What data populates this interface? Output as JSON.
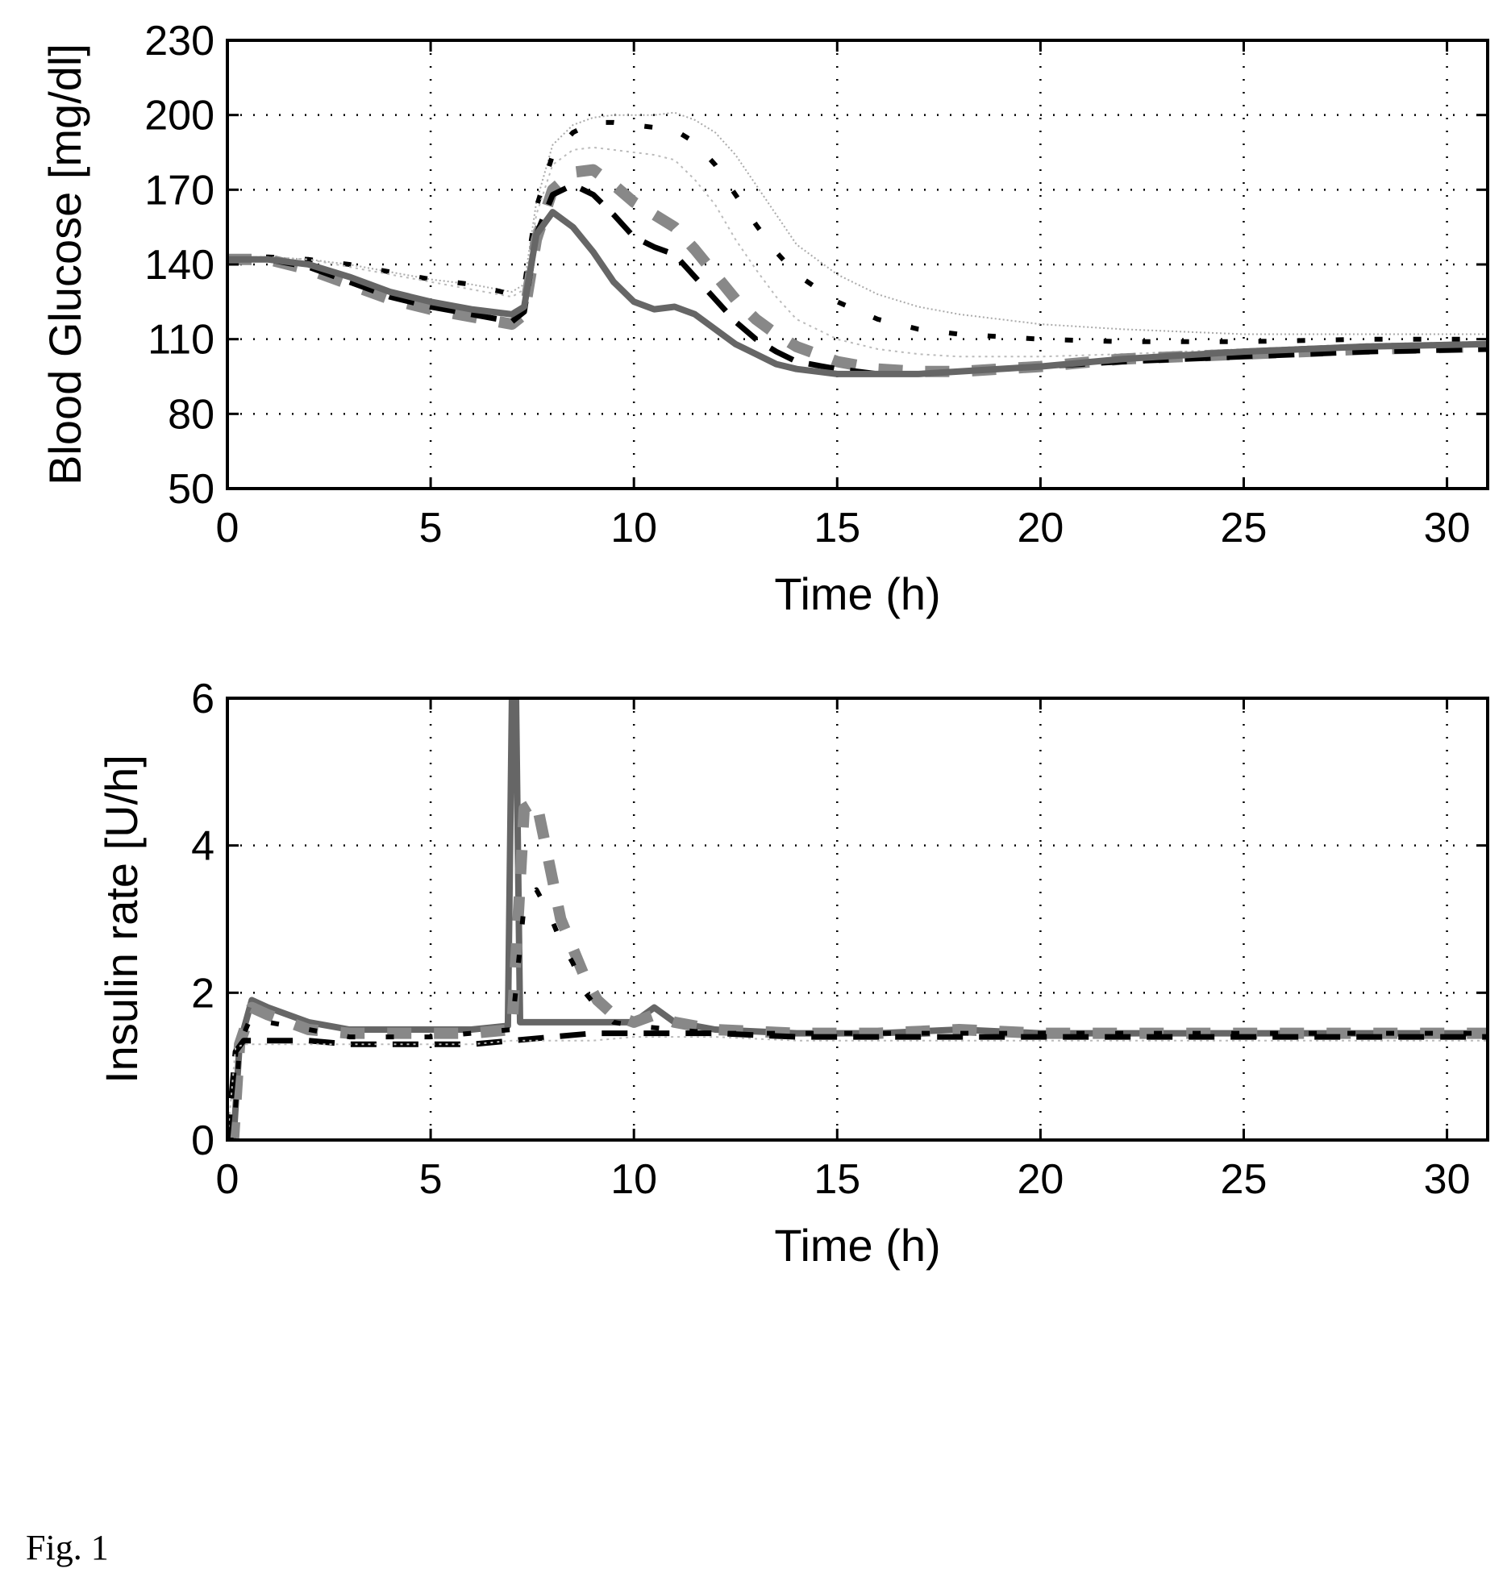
{
  "figure_label": "Fig. 1",
  "chart_data": [
    {
      "type": "line",
      "title": "",
      "xlabel": "Time (h)",
      "ylabel": "Blood Glucose [mg/dl]",
      "xlim": [
        0,
        31
      ],
      "ylim": [
        50,
        230
      ],
      "xticks": [
        0,
        5,
        10,
        15,
        20,
        25,
        30
      ],
      "yticks": [
        50,
        80,
        110,
        140,
        170,
        200,
        230
      ],
      "grid": true,
      "legend": "none",
      "series": [
        {
          "color": "#aaaaaa",
          "style": "thin-dotted",
          "x": [
            0,
            1,
            2,
            3,
            4,
            5,
            6,
            7,
            7.3,
            7.6,
            8,
            8.5,
            9,
            9.5,
            10,
            10.5,
            11,
            11.5,
            12,
            12.5,
            13,
            13.5,
            14,
            15,
            16,
            17,
            18,
            20,
            22,
            25,
            28,
            31
          ],
          "y": [
            143,
            143,
            142,
            140,
            137,
            134,
            132,
            129,
            132,
            165,
            188,
            196,
            199,
            200,
            200,
            200,
            201,
            198,
            193,
            184,
            172,
            160,
            148,
            136,
            128,
            123,
            120,
            116,
            114,
            112,
            112,
            112
          ]
        },
        {
          "color": "#000000",
          "style": "sparse-dash",
          "x": [
            0,
            1,
            2,
            3,
            4,
            5,
            6,
            7,
            7.3,
            7.6,
            8,
            8.5,
            9,
            9.5,
            10,
            10.5,
            11,
            11.5,
            12,
            12.5,
            13,
            13.5,
            14,
            15,
            16,
            17,
            18,
            20,
            22,
            25,
            28,
            31
          ],
          "y": [
            143,
            143,
            142,
            140,
            137,
            134,
            132,
            128,
            131,
            163,
            184,
            193,
            197,
            197,
            196,
            195,
            194,
            189,
            180,
            168,
            156,
            145,
            136,
            125,
            118,
            114,
            112,
            110,
            109,
            109,
            110,
            110
          ]
        },
        {
          "color": "#bbbbbb",
          "style": "fine-dotted",
          "x": [
            0,
            1,
            2,
            3,
            4,
            5,
            6,
            7,
            7.3,
            7.6,
            8,
            8.5,
            9,
            9.5,
            10,
            10.5,
            11,
            11.5,
            12,
            12.5,
            13,
            13.5,
            14,
            15,
            16,
            17,
            18,
            20,
            22,
            25,
            28,
            31
          ],
          "y": [
            143,
            143,
            142,
            139,
            136,
            133,
            130,
            127,
            130,
            160,
            180,
            186,
            187,
            186,
            185,
            184,
            182,
            174,
            164,
            150,
            138,
            127,
            118,
            110,
            106,
            104,
            103,
            103,
            104,
            106,
            108,
            109
          ]
        },
        {
          "color": "#888888",
          "style": "thick-dash",
          "x": [
            0,
            1,
            2,
            3,
            4,
            5,
            6,
            7,
            7.3,
            7.6,
            8,
            8.5,
            9,
            9.5,
            10,
            10.5,
            11,
            11.5,
            12,
            12.5,
            13,
            13.5,
            14,
            15,
            16,
            17,
            18,
            20,
            22,
            25,
            28,
            31
          ],
          "y": [
            142,
            142,
            138,
            132,
            126,
            122,
            119,
            116,
            120,
            150,
            170,
            177,
            178,
            172,
            165,
            160,
            155,
            146,
            136,
            126,
            118,
            112,
            107,
            101,
            98,
            97,
            97,
            99,
            102,
            104,
            106,
            107
          ]
        },
        {
          "color": "#000000",
          "style": "long-dash",
          "x": [
            0,
            1,
            2,
            3,
            4,
            5,
            6,
            7,
            7.3,
            7.6,
            8,
            8.5,
            9,
            9.5,
            10,
            10.5,
            11,
            11.5,
            12,
            12.5,
            13,
            13.5,
            14,
            15,
            16,
            17,
            18,
            20,
            22,
            25,
            28,
            31
          ],
          "y": [
            142,
            142,
            139,
            133,
            127,
            123,
            120,
            117,
            121,
            152,
            168,
            172,
            168,
            160,
            151,
            147,
            144,
            135,
            126,
            117,
            110,
            105,
            101,
            98,
            96,
            96,
            97,
            99,
            101,
            103,
            105,
            106
          ]
        },
        {
          "color": "#666666",
          "style": "solid",
          "x": [
            0,
            1,
            2,
            3,
            4,
            5,
            6,
            7,
            7.3,
            7.6,
            8,
            8.5,
            9,
            9.5,
            10,
            10.5,
            11,
            11.5,
            12,
            12.5,
            13,
            13.5,
            14,
            15,
            16,
            17,
            18,
            20,
            22,
            25,
            28,
            31
          ],
          "y": [
            142,
            142,
            140,
            135,
            129,
            125,
            122,
            120,
            123,
            152,
            161,
            155,
            145,
            133,
            125,
            122,
            123,
            120,
            114,
            108,
            104,
            100,
            98,
            96,
            96,
            96,
            97,
            99,
            102,
            105,
            107,
            108
          ]
        }
      ]
    },
    {
      "type": "line",
      "title": "",
      "xlabel": "Time (h)",
      "ylabel": "Insulin rate [U/h]",
      "xlim": [
        0,
        31
      ],
      "ylim": [
        0,
        6
      ],
      "xticks": [
        0,
        5,
        10,
        15,
        20,
        25,
        30
      ],
      "yticks": [
        0,
        2,
        4,
        6
      ],
      "grid": true,
      "legend": "none",
      "series": [
        {
          "color": "#666666",
          "style": "solid",
          "x": [
            0,
            0.15,
            0.3,
            0.6,
            1,
            2,
            3,
            4,
            5,
            6,
            6.9,
            7,
            7.1,
            7.2,
            7.4,
            8,
            9,
            10,
            10.5,
            11,
            12,
            14,
            16,
            18,
            20,
            22,
            24,
            26,
            28,
            30,
            31
          ],
          "y": [
            0,
            0,
            1.3,
            1.9,
            1.8,
            1.6,
            1.5,
            1.5,
            1.5,
            1.5,
            1.55,
            6,
            6,
            1.6,
            1.6,
            1.6,
            1.6,
            1.6,
            1.8,
            1.6,
            1.5,
            1.45,
            1.45,
            1.5,
            1.45,
            1.45,
            1.45,
            1.45,
            1.45,
            1.45,
            1.45
          ]
        },
        {
          "color": "#888888",
          "style": "thick-dash",
          "x": [
            0,
            0.15,
            0.3,
            0.6,
            1,
            2,
            3,
            4,
            5,
            6,
            7,
            7.3,
            7.6,
            7.9,
            8.2,
            8.5,
            8.8,
            9.1,
            9.5,
            10,
            10.5,
            11,
            12,
            14,
            16,
            18,
            20,
            22,
            24,
            26,
            28,
            30,
            31
          ],
          "y": [
            0,
            0,
            1.3,
            1.8,
            1.7,
            1.5,
            1.45,
            1.45,
            1.45,
            1.45,
            1.5,
            4.5,
            4.6,
            3.8,
            3.0,
            2.6,
            2.2,
            1.9,
            1.7,
            1.6,
            1.7,
            1.6,
            1.5,
            1.45,
            1.45,
            1.5,
            1.45,
            1.45,
            1.45,
            1.45,
            1.45,
            1.45,
            1.45
          ]
        },
        {
          "color": "#000000",
          "style": "sparse-dash",
          "x": [
            0,
            0.15,
            0.3,
            0.6,
            1,
            2,
            3,
            4,
            5,
            6,
            7,
            7.3,
            7.6,
            7.9,
            8.2,
            8.5,
            8.8,
            9.1,
            9.5,
            10,
            11,
            12,
            14,
            16,
            18,
            20,
            22,
            24,
            26,
            28,
            30,
            31
          ],
          "y": [
            0,
            0,
            1.3,
            1.7,
            1.6,
            1.5,
            1.4,
            1.4,
            1.4,
            1.45,
            1.5,
            3.2,
            3.4,
            3.1,
            2.7,
            2.4,
            2.0,
            1.8,
            1.6,
            1.55,
            1.5,
            1.45,
            1.45,
            1.45,
            1.45,
            1.45,
            1.45,
            1.45,
            1.45,
            1.45,
            1.45,
            1.45
          ]
        },
        {
          "color": "#000000",
          "style": "long-dash",
          "x": [
            0,
            0.2,
            0.4,
            1,
            2,
            3,
            4,
            5,
            6,
            7,
            8,
            9,
            10,
            12,
            14,
            16,
            18,
            20,
            22,
            24,
            26,
            28,
            30,
            31
          ],
          "y": [
            0,
            1.2,
            1.35,
            1.35,
            1.35,
            1.3,
            1.3,
            1.3,
            1.3,
            1.35,
            1.4,
            1.45,
            1.45,
            1.45,
            1.4,
            1.4,
            1.4,
            1.4,
            1.4,
            1.4,
            1.4,
            1.4,
            1.4,
            1.4
          ]
        },
        {
          "color": "#bbbbbb",
          "style": "fine-dotted",
          "x": [
            0,
            0.2,
            0.4,
            1,
            2,
            3,
            4,
            5,
            6,
            7,
            8,
            9,
            10,
            12,
            14,
            16,
            18,
            20,
            22,
            24,
            26,
            28,
            30,
            31
          ],
          "y": [
            0,
            1.25,
            1.3,
            1.3,
            1.3,
            1.3,
            1.3,
            1.3,
            1.3,
            1.35,
            1.35,
            1.35,
            1.4,
            1.4,
            1.35,
            1.35,
            1.35,
            1.35,
            1.35,
            1.35,
            1.35,
            1.35,
            1.35,
            1.35
          ]
        }
      ]
    }
  ]
}
